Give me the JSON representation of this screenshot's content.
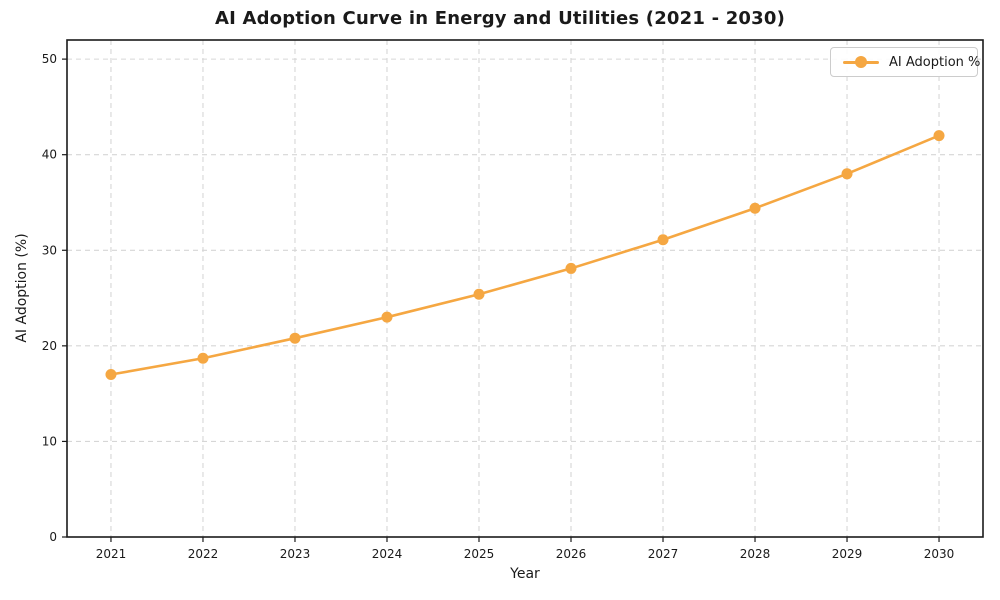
{
  "title": "AI Adoption Curve in Energy and Utilities (2021 - 2030)",
  "colors": {
    "line": "#F5A742",
    "grid": "#D6D6D6",
    "spine": "#1a1a1a",
    "text": "#1a1a1a",
    "legend_border": "#cccccc",
    "background": "#ffffff"
  },
  "legend": {
    "label": "AI Adoption %",
    "position": "upper right"
  },
  "chart_data": {
    "type": "line",
    "title": "AI Adoption Curve in Energy and Utilities (2021 - 2030)",
    "xlabel": "Year",
    "ylabel": "AI Adoption (%)",
    "x": [
      2021,
      2022,
      2023,
      2024,
      2025,
      2026,
      2027,
      2028,
      2029,
      2030
    ],
    "series": [
      {
        "name": "AI Adoption %",
        "values": [
          17.0,
          18.7,
          20.8,
          23.0,
          25.4,
          28.1,
          31.1,
          34.4,
          38.0,
          42.0
        ],
        "color": "#F5A742",
        "marker": "o"
      }
    ],
    "yticks": [
      0,
      10,
      20,
      30,
      40,
      50
    ],
    "ylim": [
      0,
      52
    ],
    "grid": true,
    "grid_style": "dashed",
    "legend_position": "upper right"
  }
}
